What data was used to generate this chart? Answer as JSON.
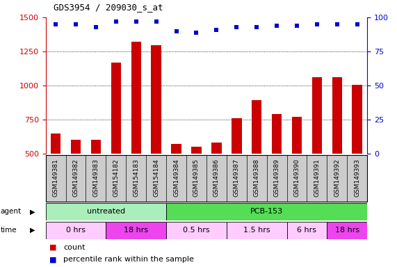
{
  "title": "GDS3954 / 209030_s_at",
  "samples": [
    "GSM149381",
    "GSM149382",
    "GSM149383",
    "GSM154182",
    "GSM154183",
    "GSM154184",
    "GSM149384",
    "GSM149385",
    "GSM149386",
    "GSM149387",
    "GSM149388",
    "GSM149389",
    "GSM149390",
    "GSM149391",
    "GSM149392",
    "GSM149393"
  ],
  "counts": [
    645,
    600,
    600,
    1170,
    1320,
    1295,
    570,
    550,
    580,
    760,
    890,
    790,
    770,
    1060,
    1060,
    1005
  ],
  "percentile_ranks": [
    95,
    95,
    93,
    97,
    97,
    97,
    90,
    89,
    91,
    93,
    93,
    94,
    94,
    95,
    95,
    95
  ],
  "ylim_left": [
    500,
    1500
  ],
  "ylim_right": [
    0,
    100
  ],
  "yticks_left": [
    500,
    750,
    1000,
    1250,
    1500
  ],
  "yticks_right": [
    0,
    25,
    50,
    75,
    100
  ],
  "grid_lines": [
    750,
    1000,
    1250
  ],
  "bar_color": "#cc0000",
  "dot_color": "#0000cc",
  "bar_width": 0.5,
  "agent_groups": [
    {
      "label": "untreated",
      "start": 0,
      "end": 5,
      "color": "#aaeebb"
    },
    {
      "label": "PCB-153",
      "start": 6,
      "end": 15,
      "color": "#55dd55"
    }
  ],
  "time_groups": [
    {
      "label": "0 hrs",
      "start": 0,
      "end": 2,
      "color": "#ffccff"
    },
    {
      "label": "18 hrs",
      "start": 3,
      "end": 5,
      "color": "#ee44ee"
    },
    {
      "label": "0.5 hrs",
      "start": 6,
      "end": 8,
      "color": "#ffccff"
    },
    {
      "label": "1.5 hrs",
      "start": 9,
      "end": 11,
      "color": "#ffccff"
    },
    {
      "label": "6 hrs",
      "start": 12,
      "end": 13,
      "color": "#ffccff"
    },
    {
      "label": "18 hrs",
      "start": 14,
      "end": 15,
      "color": "#ee44ee"
    }
  ],
  "left_axis_color": "#cc0000",
  "right_axis_color": "#0000cc",
  "plot_bg": "#ffffff",
  "label_bg": "#cccccc",
  "fig_bg": "#ffffff"
}
